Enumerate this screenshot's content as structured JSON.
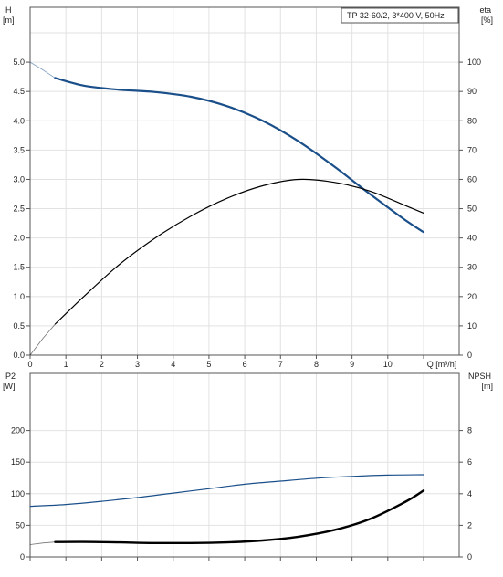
{
  "chart_data": [
    {
      "type": "line",
      "title": "TP 32-60/2, 3*400 V, 50Hz",
      "xlabel": "Q [m³/h]",
      "xlim": [
        0,
        11
      ],
      "xticks": [
        "0",
        "1",
        "2",
        "3",
        "4",
        "5",
        "6",
        "7",
        "8",
        "9",
        "10"
      ],
      "grid": true,
      "left_axis": {
        "label_line1": "H",
        "label_line2": "[m]",
        "ylim": [
          0,
          5.5
        ],
        "ticks": [
          "0.0",
          "0.5",
          "1.0",
          "1.5",
          "2.0",
          "2.5",
          "3.0",
          "3.5",
          "4.0",
          "4.5",
          "5.0"
        ]
      },
      "right_axis": {
        "label_line1": "eta",
        "label_line2": "[%]",
        "ylim": [
          0,
          110
        ],
        "ticks": [
          "0",
          "10",
          "20",
          "30",
          "40",
          "50",
          "60",
          "70",
          "80",
          "90",
          "100"
        ]
      },
      "series": [
        {
          "axis": "left",
          "color": "#1a4f8a",
          "extension": {
            "x": [
              0,
              0.35,
              0.7
            ],
            "y": [
              5.0,
              4.87,
              4.73
            ]
          },
          "x": [
            0.7,
            1.5,
            2.5,
            3.5,
            4.5,
            5.5,
            6.5,
            7.5,
            8.5,
            9.5,
            10.5,
            11.0
          ],
          "y": [
            4.73,
            4.6,
            4.53,
            4.49,
            4.41,
            4.25,
            4.0,
            3.65,
            3.22,
            2.75,
            2.3,
            2.1
          ]
        },
        {
          "axis": "right",
          "color": "#000000",
          "extension": {
            "x": [
              0,
              0.35,
              0.7
            ],
            "y": [
              0,
              5.6,
              10.6
            ]
          },
          "x": [
            0.7,
            1.5,
            2.5,
            3.5,
            4.5,
            5.5,
            6.5,
            7.5,
            8.5,
            9.5,
            10.5,
            11.0
          ],
          "y": [
            10.6,
            20,
            31,
            40,
            47.5,
            53.5,
            57.8,
            60,
            59,
            56,
            51,
            48.5
          ]
        }
      ]
    },
    {
      "type": "line",
      "xlim": [
        0,
        11
      ],
      "grid": true,
      "left_axis": {
        "label_line1": "P2",
        "label_line2": "[W]",
        "ylim": [
          0,
          250
        ],
        "ticks": [
          "0",
          "50",
          "100",
          "150",
          "200"
        ]
      },
      "right_axis": {
        "label_line1": "NPSH",
        "label_line2": "[m]",
        "ylim": [
          0,
          10
        ],
        "ticks": [
          "0",
          "2",
          "4",
          "6",
          "8"
        ]
      },
      "series": [
        {
          "axis": "left",
          "color": "#1a4f8a",
          "x": [
            0,
            1,
            2,
            3,
            4,
            5,
            6,
            7,
            8,
            9,
            10,
            11
          ],
          "y": [
            80,
            83,
            88,
            94,
            101,
            108,
            115,
            120,
            124.5,
            127.5,
            129.5,
            130
          ]
        },
        {
          "axis": "right",
          "color": "#000000",
          "extension": {
            "x": [
              0,
              0.35,
              0.7
            ],
            "y": [
              0.78,
              0.88,
              0.94
            ]
          },
          "x": [
            0.7,
            1.5,
            2.5,
            3.5,
            4.5,
            5.5,
            6.5,
            7.5,
            8.5,
            9.5,
            10.5,
            11.0
          ],
          "y": [
            0.94,
            0.95,
            0.92,
            0.88,
            0.88,
            0.92,
            1.04,
            1.28,
            1.7,
            2.4,
            3.5,
            4.2
          ]
        }
      ]
    }
  ]
}
